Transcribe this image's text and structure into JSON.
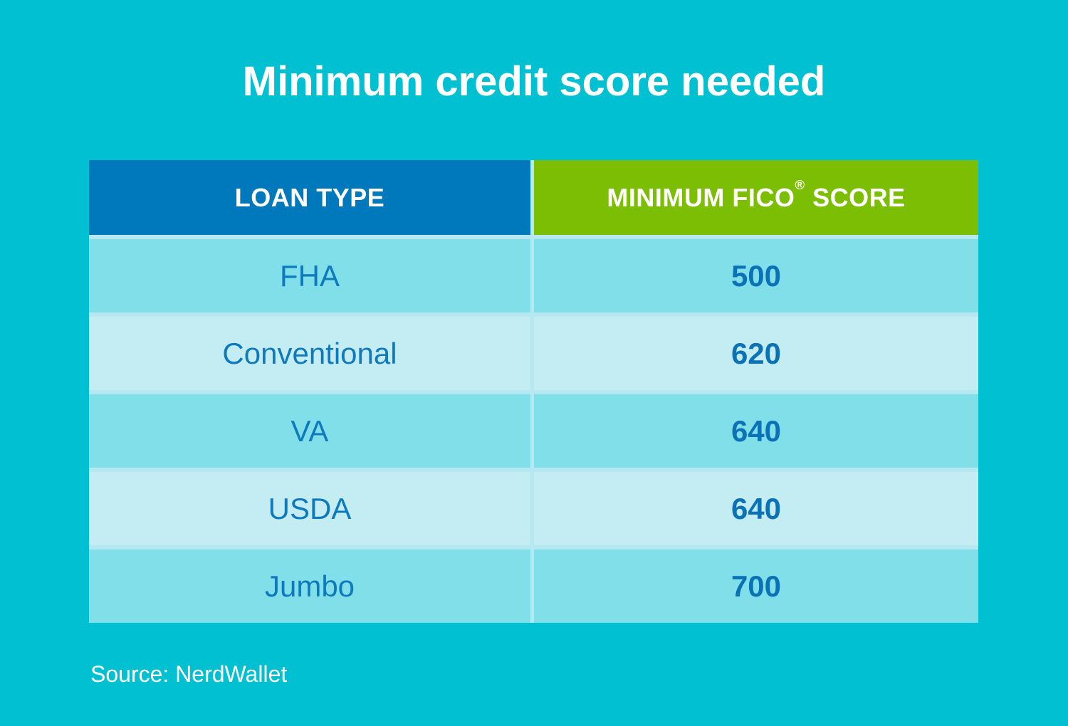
{
  "title": "Minimum credit score needed",
  "source": "Source: NerdWallet",
  "table": {
    "header": {
      "loan_type": "LOAN TYPE",
      "score_main": "MINIMUM FICO",
      "score_reg": "®",
      "score_tail": " SCORE"
    }
  },
  "chart_data": {
    "type": "table",
    "title": "Minimum credit score needed",
    "columns": [
      "LOAN TYPE",
      "MINIMUM FICO® SCORE"
    ],
    "rows": [
      {
        "loan_type": "FHA",
        "min_fico_score": "500"
      },
      {
        "loan_type": "Conventional",
        "min_fico_score": "620"
      },
      {
        "loan_type": "VA",
        "min_fico_score": "640"
      },
      {
        "loan_type": "USDA",
        "min_fico_score": "640"
      },
      {
        "loan_type": "Jumbo",
        "min_fico_score": "700"
      }
    ],
    "source": "Source: NerdWallet",
    "layout": {
      "legend": "none",
      "grid": "off",
      "row_striping": "alternating"
    }
  },
  "colors": {
    "background": "#00C0D2",
    "header_loan_bg": "#0079BC",
    "header_score_bg": "#7CBE04",
    "row_odd_bg": "#80DFE9",
    "row_even_bg": "#C3ECF3",
    "divider": "#B5E8F0",
    "loan_text": "#0E7ABD",
    "score_text": "#0B72B6",
    "title_text": "#FFFFFF"
  }
}
